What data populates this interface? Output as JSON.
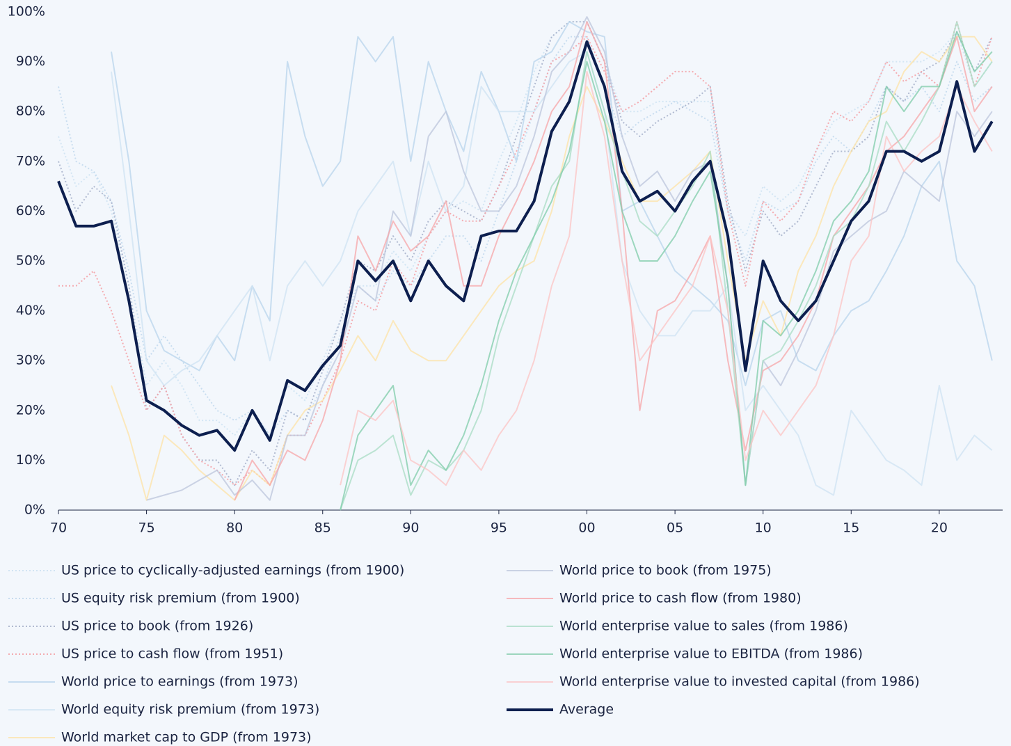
{
  "chart_data": {
    "type": "line",
    "x": [
      1970,
      1971,
      1972,
      1973,
      1974,
      1975,
      1976,
      1977,
      1978,
      1979,
      1980,
      1981,
      1982,
      1983,
      1984,
      1985,
      1986,
      1987,
      1988,
      1989,
      1990,
      1991,
      1992,
      1993,
      1994,
      1995,
      1996,
      1997,
      1998,
      1999,
      2000,
      2001,
      2002,
      2003,
      2004,
      2005,
      2006,
      2007,
      2008,
      2009,
      2010,
      2011,
      2012,
      2013,
      2014,
      2015,
      2016,
      2017,
      2018,
      2019,
      2020,
      2021,
      2022,
      2023
    ],
    "xlim": [
      1970,
      2023.6
    ],
    "xticks": [
      {
        "value": 1970,
        "label": "70"
      },
      {
        "value": 1975,
        "label": "75"
      },
      {
        "value": 1980,
        "label": "80"
      },
      {
        "value": 1985,
        "label": "85"
      },
      {
        "value": 1990,
        "label": "90"
      },
      {
        "value": 1995,
        "label": "95"
      },
      {
        "value": 2000,
        "label": "00"
      },
      {
        "value": 2005,
        "label": "05"
      },
      {
        "value": 2010,
        "label": "10"
      },
      {
        "value": 2015,
        "label": "15"
      },
      {
        "value": 2020,
        "label": "20"
      }
    ],
    "ylim": [
      0,
      100
    ],
    "yticks": [
      {
        "value": 0,
        "label": "0%"
      },
      {
        "value": 10,
        "label": "10%"
      },
      {
        "value": 20,
        "label": "20%"
      },
      {
        "value": 30,
        "label": "30%"
      },
      {
        "value": 40,
        "label": "40%"
      },
      {
        "value": 50,
        "label": "50%"
      },
      {
        "value": 60,
        "label": "60%"
      },
      {
        "value": 70,
        "label": "70%"
      },
      {
        "value": 80,
        "label": "80%"
      },
      {
        "value": 90,
        "label": "90%"
      },
      {
        "value": 100,
        "label": "100%"
      }
    ],
    "series": [
      {
        "name": "US price to cyclically-adjusted earnings (from 1900)",
        "color": "#cfe3f3",
        "style": "dotted",
        "values": [
          75,
          65,
          68,
          60,
          45,
          25,
          30,
          25,
          18,
          18,
          15,
          20,
          15,
          25,
          22,
          30,
          38,
          45,
          45,
          52,
          48,
          55,
          60,
          62,
          60,
          70,
          78,
          88,
          95,
          98,
          98,
          90,
          80,
          80,
          82,
          82,
          82,
          82,
          60,
          55,
          65,
          62,
          65,
          72,
          78,
          80,
          82,
          90,
          90,
          90,
          92,
          96,
          85,
          90
        ]
      },
      {
        "name": "US equity risk premium (from 1900)",
        "color": "#c4daee",
        "style": "dotted",
        "values": [
          85,
          70,
          68,
          62,
          48,
          30,
          35,
          30,
          25,
          20,
          18,
          20,
          15,
          20,
          18,
          25,
          35,
          45,
          42,
          48,
          45,
          50,
          55,
          55,
          50,
          60,
          70,
          80,
          90,
          95,
          95,
          85,
          75,
          78,
          80,
          82,
          80,
          78,
          60,
          50,
          62,
          60,
          62,
          70,
          75,
          72,
          78,
          85,
          82,
          85,
          80,
          90,
          82,
          85
        ]
      },
      {
        "name": "US price to book (from 1926)",
        "color": "#aab4cc",
        "style": "dotted",
        "values": [
          70,
          60,
          65,
          62,
          45,
          20,
          25,
          15,
          10,
          10,
          5,
          12,
          8,
          20,
          18,
          28,
          38,
          50,
          48,
          55,
          50,
          58,
          62,
          60,
          58,
          65,
          75,
          85,
          95,
          98,
          98,
          90,
          78,
          75,
          78,
          80,
          82,
          85,
          62,
          48,
          60,
          55,
          58,
          65,
          72,
          72,
          75,
          85,
          82,
          88,
          90,
          96,
          88,
          95
        ]
      },
      {
        "name": "US price to cash flow (from 1951)",
        "color": "#f4a3a8",
        "style": "dotted",
        "values": [
          45,
          45,
          48,
          40,
          30,
          20,
          25,
          15,
          10,
          8,
          5,
          8,
          5,
          15,
          15,
          22,
          30,
          42,
          40,
          50,
          45,
          55,
          60,
          58,
          58,
          65,
          72,
          80,
          90,
          92,
          95,
          88,
          80,
          82,
          85,
          88,
          88,
          85,
          60,
          45,
          62,
          58,
          62,
          72,
          80,
          78,
          82,
          90,
          86,
          88,
          85,
          98,
          85,
          95
        ]
      },
      {
        "name": "World price to earnings (from 1973)",
        "color": "#b8d4ec",
        "style": "solid",
        "values": [
          null,
          null,
          null,
          92,
          70,
          40,
          32,
          30,
          28,
          35,
          30,
          45,
          38,
          90,
          75,
          65,
          70,
          95,
          90,
          95,
          70,
          90,
          80,
          72,
          88,
          80,
          70,
          90,
          92,
          98,
          96,
          95,
          60,
          62,
          55,
          48,
          45,
          42,
          38,
          25,
          38,
          40,
          30,
          28,
          35,
          40,
          42,
          48,
          55,
          65,
          70,
          50,
          45,
          30
        ]
      },
      {
        "name": "World equity risk premium (from 1973)",
        "color": "#cfe3f3",
        "style": "solid",
        "values": [
          null,
          null,
          null,
          88,
          60,
          30,
          25,
          28,
          30,
          35,
          40,
          45,
          30,
          45,
          50,
          45,
          50,
          60,
          65,
          70,
          55,
          70,
          60,
          65,
          85,
          80,
          80,
          80,
          85,
          90,
          92,
          80,
          50,
          40,
          35,
          35,
          40,
          40,
          45,
          20,
          25,
          20,
          15,
          5,
          3,
          20,
          15,
          10,
          8,
          5,
          25,
          10,
          15,
          12
        ]
      },
      {
        "name": "World market cap to GDP (from 1973)",
        "color": "#fde3a7",
        "style": "solid",
        "values": [
          null,
          null,
          null,
          25,
          15,
          2,
          15,
          12,
          8,
          5,
          2,
          8,
          5,
          15,
          20,
          22,
          28,
          35,
          30,
          38,
          32,
          30,
          30,
          35,
          40,
          45,
          48,
          50,
          60,
          75,
          85,
          78,
          70,
          62,
          62,
          65,
          68,
          72,
          50,
          30,
          42,
          35,
          48,
          55,
          65,
          72,
          78,
          80,
          88,
          92,
          90,
          95,
          95,
          90
        ]
      },
      {
        "name": "World price to book (from 1975)",
        "color": "#bcc6dc",
        "style": "solid",
        "values": [
          null,
          null,
          null,
          null,
          null,
          2,
          3,
          4,
          6,
          8,
          3,
          6,
          2,
          15,
          15,
          25,
          32,
          45,
          42,
          60,
          55,
          75,
          80,
          68,
          60,
          60,
          65,
          75,
          88,
          92,
          99,
          92,
          75,
          65,
          68,
          62,
          68,
          70,
          45,
          5,
          30,
          25,
          32,
          40,
          52,
          55,
          58,
          60,
          68,
          65,
          62,
          80,
          75,
          80
        ]
      },
      {
        "name": "World price to cash flow (from 1980)",
        "color": "#f7a5a8",
        "style": "solid",
        "values": [
          null,
          null,
          null,
          null,
          null,
          null,
          null,
          null,
          null,
          null,
          2,
          10,
          5,
          12,
          10,
          18,
          30,
          55,
          48,
          58,
          52,
          55,
          62,
          45,
          45,
          55,
          62,
          70,
          80,
          85,
          98,
          90,
          60,
          20,
          40,
          42,
          48,
          55,
          30,
          12,
          28,
          30,
          35,
          42,
          55,
          60,
          65,
          72,
          75,
          80,
          85,
          95,
          80,
          85
        ]
      },
      {
        "name": "World enterprise value to sales (from 1986)",
        "color": "#a8dcc4",
        "style": "solid",
        "values": [
          null,
          null,
          null,
          null,
          null,
          null,
          null,
          null,
          null,
          null,
          null,
          null,
          null,
          null,
          null,
          null,
          0,
          10,
          12,
          15,
          3,
          10,
          8,
          12,
          20,
          35,
          45,
          55,
          65,
          70,
          92,
          80,
          68,
          58,
          55,
          60,
          65,
          72,
          40,
          5,
          30,
          32,
          38,
          45,
          55,
          58,
          65,
          78,
          72,
          78,
          85,
          98,
          85,
          90
        ]
      },
      {
        "name": "World enterprise value to EBITDA (from 1986)",
        "color": "#7fccaa",
        "style": "solid",
        "values": [
          null,
          null,
          null,
          null,
          null,
          null,
          null,
          null,
          null,
          null,
          null,
          null,
          null,
          null,
          null,
          null,
          0,
          15,
          20,
          25,
          5,
          12,
          8,
          15,
          25,
          38,
          48,
          55,
          62,
          72,
          90,
          78,
          60,
          50,
          50,
          55,
          62,
          68,
          45,
          5,
          38,
          35,
          40,
          48,
          58,
          62,
          68,
          85,
          80,
          85,
          85,
          96,
          88,
          92
        ]
      },
      {
        "name": "World enterprise value to invested capital (from 1986)",
        "color": "#fcc4c4",
        "style": "solid",
        "values": [
          null,
          null,
          null,
          null,
          null,
          null,
          null,
          null,
          null,
          null,
          null,
          null,
          null,
          null,
          null,
          null,
          5,
          20,
          18,
          22,
          10,
          8,
          5,
          12,
          8,
          15,
          20,
          30,
          45,
          55,
          88,
          75,
          50,
          30,
          35,
          40,
          45,
          55,
          40,
          10,
          20,
          15,
          20,
          25,
          35,
          50,
          55,
          75,
          68,
          72,
          75,
          85,
          78,
          72
        ]
      },
      {
        "name": "Average",
        "color": "#0d1f4f",
        "style": "bold",
        "values": [
          66,
          57,
          57,
          58,
          42,
          22,
          20,
          17,
          15,
          16,
          12,
          20,
          14,
          26,
          24,
          29,
          33,
          50,
          46,
          50,
          42,
          50,
          45,
          42,
          55,
          56,
          56,
          62,
          76,
          82,
          94,
          85,
          68,
          62,
          64,
          60,
          66,
          70,
          55,
          28,
          50,
          42,
          38,
          42,
          50,
          58,
          62,
          72,
          72,
          70,
          72,
          86,
          72,
          78
        ]
      }
    ]
  }
}
